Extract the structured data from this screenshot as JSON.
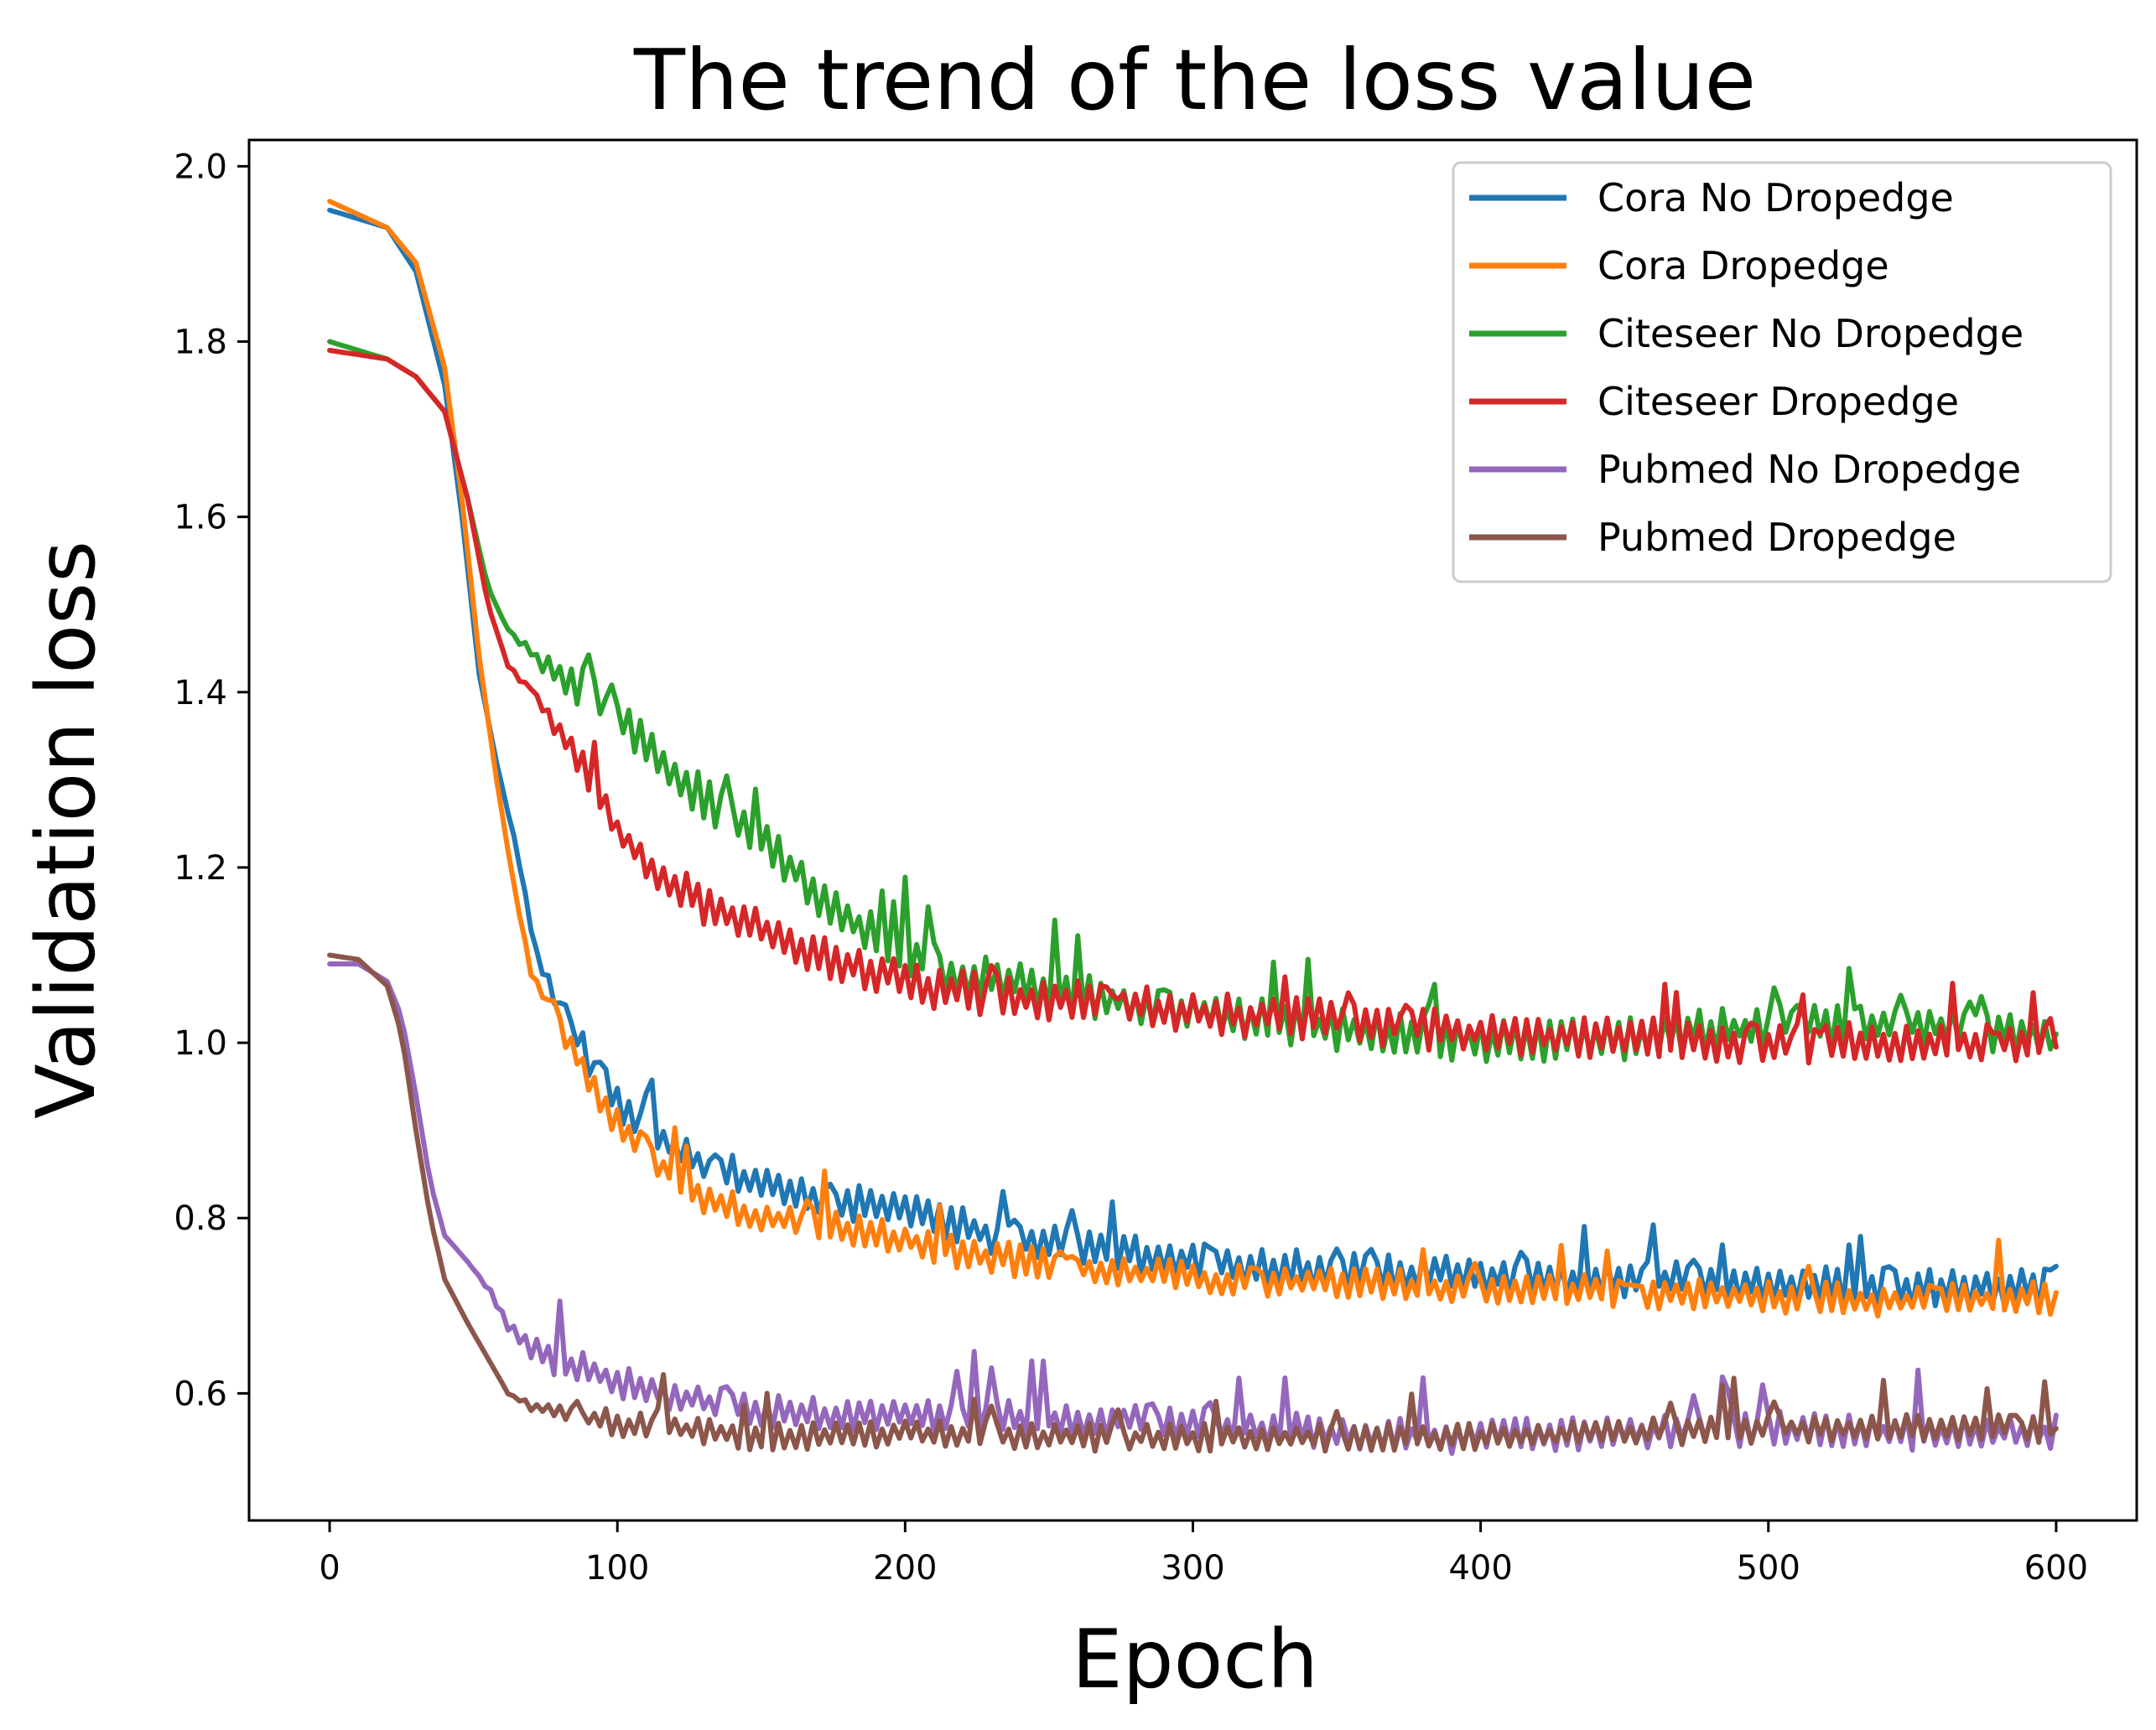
{
  "chart_data": {
    "type": "line",
    "title": "The trend of the loss value",
    "xlabel": "Epoch",
    "ylabel": "Validation loss",
    "xlim": [
      -28,
      628
    ],
    "ylim": [
      0.455,
      2.03
    ],
    "xticks": [
      0,
      100,
      200,
      300,
      400,
      500,
      600
    ],
    "yticks": [
      0.6,
      0.8,
      1.0,
      1.2,
      1.4,
      1.6,
      1.8,
      2.0
    ],
    "xtick_labels": [
      "0",
      "100",
      "200",
      "300",
      "400",
      "500",
      "600"
    ],
    "ytick_labels": [
      "0.6",
      "0.8",
      "1.0",
      "1.2",
      "1.4",
      "1.6",
      "1.8",
      "2.0"
    ],
    "grid": false,
    "legend_position": "top-right",
    "colors": {
      "Cora No Dropedge": "#1f77b4",
      "Cora Dropedge": "#ff7f0e",
      "Citeseer No Dropedge": "#2ca02c",
      "Citeseer Dropedge": "#d62728",
      "Pubmed No Dropedge": "#9467bd",
      "Pubmed Dropedge": "#8c564b"
    },
    "series": [
      {
        "name": "Cora No Dropedge",
        "anchors": [
          [
            0,
            1.95
          ],
          [
            10,
            1.94
          ],
          [
            20,
            1.93
          ],
          [
            30,
            1.88
          ],
          [
            40,
            1.75
          ],
          [
            46,
            1.6
          ],
          [
            52,
            1.42
          ],
          [
            58,
            1.32
          ],
          [
            65,
            1.22
          ],
          [
            72,
            1.1
          ],
          [
            80,
            1.04
          ],
          [
            90,
            0.98
          ],
          [
            100,
            0.93
          ],
          [
            115,
            0.89
          ],
          [
            130,
            0.86
          ],
          [
            150,
            0.84
          ],
          [
            175,
            0.82
          ],
          [
            200,
            0.81
          ],
          [
            230,
            0.78
          ],
          [
            260,
            0.765
          ],
          [
            300,
            0.75
          ],
          [
            350,
            0.74
          ],
          [
            400,
            0.735
          ],
          [
            450,
            0.73
          ],
          [
            500,
            0.725
          ],
          [
            550,
            0.72
          ],
          [
            600,
            0.72
          ]
        ],
        "noise": 0.022,
        "spikes": 0.06,
        "noise_start": 60,
        "seed": 11,
        "last": 0.745
      },
      {
        "name": "Cora Dropedge",
        "anchors": [
          [
            0,
            1.96
          ],
          [
            10,
            1.945
          ],
          [
            20,
            1.93
          ],
          [
            30,
            1.89
          ],
          [
            40,
            1.77
          ],
          [
            46,
            1.62
          ],
          [
            52,
            1.44
          ],
          [
            58,
            1.3
          ],
          [
            64,
            1.18
          ],
          [
            70,
            1.08
          ],
          [
            80,
            1.02
          ],
          [
            90,
            0.96
          ],
          [
            100,
            0.91
          ],
          [
            115,
            0.86
          ],
          [
            130,
            0.82
          ],
          [
            150,
            0.8
          ],
          [
            175,
            0.79
          ],
          [
            200,
            0.775
          ],
          [
            230,
            0.755
          ],
          [
            260,
            0.745
          ],
          [
            300,
            0.73
          ],
          [
            350,
            0.725
          ],
          [
            400,
            0.72
          ],
          [
            450,
            0.715
          ],
          [
            500,
            0.71
          ],
          [
            550,
            0.705
          ],
          [
            600,
            0.71
          ]
        ],
        "noise": 0.02,
        "spikes": 0.05,
        "noise_start": 60,
        "seed": 23,
        "last": 0.715
      },
      {
        "name": "Citeseer No Dropedge",
        "anchors": [
          [
            0,
            1.8
          ],
          [
            10,
            1.79
          ],
          [
            20,
            1.78
          ],
          [
            30,
            1.76
          ],
          [
            40,
            1.72
          ],
          [
            48,
            1.62
          ],
          [
            55,
            1.52
          ],
          [
            62,
            1.47
          ],
          [
            75,
            1.43
          ],
          [
            90,
            1.4
          ],
          [
            100,
            1.37
          ],
          [
            115,
            1.32
          ],
          [
            130,
            1.28
          ],
          [
            150,
            1.23
          ],
          [
            170,
            1.17
          ],
          [
            190,
            1.12
          ],
          [
            210,
            1.085
          ],
          [
            250,
            1.06
          ],
          [
            300,
            1.035
          ],
          [
            350,
            1.015
          ],
          [
            400,
            1.0
          ],
          [
            450,
            1.005
          ],
          [
            500,
            1.02
          ],
          [
            550,
            1.02
          ],
          [
            600,
            1.01
          ]
        ],
        "noise": 0.025,
        "spikes": 0.07,
        "noise_start": 60,
        "seed": 37,
        "last": 1.01
      },
      {
        "name": "Citeseer Dropedge",
        "anchors": [
          [
            0,
            1.79
          ],
          [
            10,
            1.785
          ],
          [
            20,
            1.78
          ],
          [
            30,
            1.76
          ],
          [
            40,
            1.72
          ],
          [
            48,
            1.62
          ],
          [
            55,
            1.5
          ],
          [
            62,
            1.43
          ],
          [
            75,
            1.38
          ],
          [
            90,
            1.3
          ],
          [
            100,
            1.24
          ],
          [
            115,
            1.19
          ],
          [
            130,
            1.16
          ],
          [
            150,
            1.13
          ],
          [
            170,
            1.1
          ],
          [
            190,
            1.08
          ],
          [
            210,
            1.06
          ],
          [
            250,
            1.05
          ],
          [
            300,
            1.035
          ],
          [
            350,
            1.025
          ],
          [
            400,
            1.01
          ],
          [
            450,
            1.005
          ],
          [
            500,
            1.0
          ],
          [
            550,
            1.0
          ],
          [
            600,
            1.0
          ]
        ],
        "noise": 0.025,
        "spikes": 0.05,
        "noise_start": 60,
        "seed": 53,
        "last": 0.995
      },
      {
        "name": "Pubmed No Dropedge",
        "anchors": [
          [
            0,
            1.09
          ],
          [
            10,
            1.09
          ],
          [
            20,
            1.07
          ],
          [
            25,
            1.03
          ],
          [
            30,
            0.94
          ],
          [
            35,
            0.84
          ],
          [
            40,
            0.78
          ],
          [
            48,
            0.75
          ],
          [
            55,
            0.72
          ],
          [
            62,
            0.68
          ],
          [
            70,
            0.65
          ],
          [
            85,
            0.63
          ],
          [
            100,
            0.615
          ],
          [
            115,
            0.6
          ],
          [
            130,
            0.59
          ],
          [
            150,
            0.58
          ],
          [
            180,
            0.575
          ],
          [
            220,
            0.575
          ],
          [
            260,
            0.57
          ],
          [
            300,
            0.565
          ],
          [
            350,
            0.555
          ],
          [
            400,
            0.55
          ],
          [
            450,
            0.555
          ],
          [
            500,
            0.56
          ],
          [
            550,
            0.555
          ],
          [
            600,
            0.555
          ]
        ],
        "noise": 0.02,
        "spikes": 0.07,
        "noise_start": 50,
        "seed": 71,
        "last": 0.575
      },
      {
        "name": "Pubmed Dropedge",
        "anchors": [
          [
            0,
            1.1
          ],
          [
            10,
            1.095
          ],
          [
            20,
            1.065
          ],
          [
            25,
            1.01
          ],
          [
            30,
            0.9
          ],
          [
            35,
            0.8
          ],
          [
            40,
            0.73
          ],
          [
            48,
            0.68
          ],
          [
            55,
            0.64
          ],
          [
            62,
            0.6
          ],
          [
            70,
            0.585
          ],
          [
            85,
            0.575
          ],
          [
            100,
            0.565
          ],
          [
            120,
            0.56
          ],
          [
            150,
            0.55
          ],
          [
            200,
            0.555
          ],
          [
            250,
            0.55
          ],
          [
            300,
            0.55
          ],
          [
            350,
            0.55
          ],
          [
            400,
            0.55
          ],
          [
            450,
            0.555
          ],
          [
            500,
            0.56
          ],
          [
            550,
            0.56
          ],
          [
            600,
            0.56
          ]
        ],
        "noise": 0.016,
        "spikes": 0.05,
        "noise_start": 60,
        "seed": 97,
        "last": 0.56
      }
    ]
  }
}
